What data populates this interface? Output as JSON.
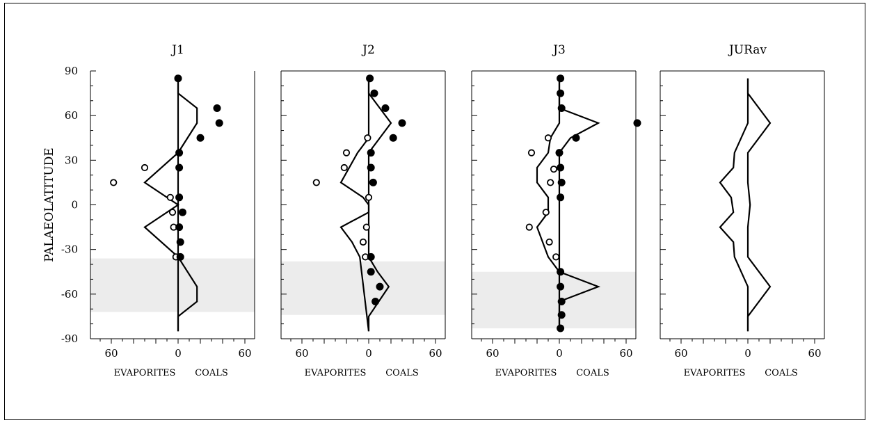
{
  "chart_data": {
    "type": "scatter",
    "ylabel": "PALAEOLATITUDE",
    "ylim": [
      -90,
      90
    ],
    "xlim": [
      -60,
      60
    ],
    "y_ticks": [
      "90",
      "60",
      "30",
      "0",
      "-30",
      "-60",
      "-90"
    ],
    "x_ticks": [
      "60",
      "0",
      "60"
    ],
    "x_left_caption": "EVAPORITES",
    "x_right_caption": "COALS",
    "panels": [
      {
        "title": "J1",
        "shade": [
          -72,
          -36
        ],
        "evaporites": [
          [
            -58,
            15
          ],
          [
            -30,
            25
          ],
          [
            -7,
            5
          ],
          [
            -5,
            -5
          ],
          [
            -4,
            -15
          ],
          [
            -2,
            -35
          ]
        ],
        "coals": [
          [
            0,
            85
          ],
          [
            35,
            65
          ],
          [
            37,
            55
          ],
          [
            20,
            45
          ],
          [
            1,
            35
          ],
          [
            1,
            25
          ],
          [
            1,
            5
          ],
          [
            4,
            -5
          ],
          [
            1,
            -15
          ],
          [
            2,
            -25
          ],
          [
            2,
            -35
          ]
        ],
        "evaporite_curve": [
          [
            0,
            85
          ],
          [
            0,
            35
          ],
          [
            -30,
            15
          ],
          [
            0,
            0
          ],
          [
            -30,
            -15
          ],
          [
            0,
            -35
          ],
          [
            0,
            -85
          ]
        ],
        "coal_curve": [
          [
            0,
            85
          ],
          [
            0,
            75
          ],
          [
            17,
            65
          ],
          [
            17,
            55
          ],
          [
            0,
            35
          ],
          [
            0,
            0
          ],
          [
            0,
            -35
          ],
          [
            17,
            -55
          ],
          [
            17,
            -65
          ],
          [
            0,
            -75
          ],
          [
            0,
            -85
          ]
        ]
      },
      {
        "title": "J2",
        "shade": [
          -74,
          -38
        ],
        "evaporites": [
          [
            -47,
            15
          ],
          [
            -20,
            35
          ],
          [
            -22,
            25
          ],
          [
            -1,
            45
          ],
          [
            0,
            5
          ],
          [
            -2,
            -15
          ],
          [
            -5,
            -25
          ],
          [
            -3,
            -35
          ]
        ],
        "coals": [
          [
            1,
            85
          ],
          [
            5,
            75
          ],
          [
            15,
            65
          ],
          [
            30,
            55
          ],
          [
            22,
            45
          ],
          [
            2,
            35
          ],
          [
            2,
            25
          ],
          [
            4,
            15
          ],
          [
            2,
            -35
          ],
          [
            2,
            -45
          ],
          [
            10,
            -55
          ],
          [
            6,
            -65
          ]
        ],
        "evaporite_curve": [
          [
            0,
            85
          ],
          [
            0,
            45
          ],
          [
            -10,
            35
          ],
          [
            -25,
            15
          ],
          [
            -5,
            5
          ],
          [
            0,
            0
          ],
          [
            0,
            -5
          ],
          [
            -25,
            -15
          ],
          [
            -15,
            -25
          ],
          [
            -8,
            -35
          ],
          [
            0,
            -85
          ]
        ],
        "coal_curve": [
          [
            0,
            85
          ],
          [
            0,
            75
          ],
          [
            10,
            65
          ],
          [
            20,
            55
          ],
          [
            0,
            35
          ],
          [
            0,
            0
          ],
          [
            0,
            -35
          ],
          [
            8,
            -45
          ],
          [
            18,
            -55
          ],
          [
            0,
            -75
          ],
          [
            0,
            -85
          ]
        ]
      },
      {
        "title": "J3",
        "shade": [
          -83,
          -45
        ],
        "evaporites": [
          [
            -25,
            35
          ],
          [
            -5,
            24
          ],
          [
            -8,
            15
          ],
          [
            -12,
            -5
          ],
          [
            -27,
            -15
          ],
          [
            -9,
            -25
          ],
          [
            -3,
            -35
          ],
          [
            -10,
            45
          ]
        ],
        "coals": [
          [
            1,
            85
          ],
          [
            1,
            75
          ],
          [
            2,
            65
          ],
          [
            70,
            55
          ],
          [
            15,
            45
          ],
          [
            0,
            35
          ],
          [
            1,
            25
          ],
          [
            2,
            15
          ],
          [
            1,
            5
          ],
          [
            1,
            -45
          ],
          [
            1,
            -55
          ],
          [
            2,
            -65
          ],
          [
            2,
            -74
          ],
          [
            1,
            -83
          ]
        ],
        "evaporite_curve": [
          [
            0,
            85
          ],
          [
            0,
            55
          ],
          [
            -8,
            45
          ],
          [
            -10,
            35
          ],
          [
            -20,
            25
          ],
          [
            -20,
            15
          ],
          [
            -10,
            5
          ],
          [
            -10,
            -5
          ],
          [
            -20,
            -15
          ],
          [
            -15,
            -25
          ],
          [
            -10,
            -35
          ],
          [
            0,
            -45
          ],
          [
            0,
            -85
          ]
        ],
        "coal_curve": [
          [
            0,
            85
          ],
          [
            0,
            65
          ],
          [
            35,
            55
          ],
          [
            10,
            45
          ],
          [
            0,
            35
          ],
          [
            0,
            0
          ],
          [
            0,
            -45
          ],
          [
            35,
            -55
          ],
          [
            0,
            -65
          ],
          [
            0,
            -85
          ]
        ]
      },
      {
        "title": "JURav",
        "shade": null,
        "evaporites": [],
        "coals": [],
        "evaporite_curve": [
          [
            0,
            85
          ],
          [
            0,
            55
          ],
          [
            -12,
            35
          ],
          [
            -13,
            25
          ],
          [
            -25,
            15
          ],
          [
            -15,
            5
          ],
          [
            -13,
            -5
          ],
          [
            -25,
            -15
          ],
          [
            -13,
            -25
          ],
          [
            -12,
            -35
          ],
          [
            0,
            -55
          ],
          [
            0,
            -85
          ]
        ],
        "coal_curve": [
          [
            0,
            85
          ],
          [
            0,
            75
          ],
          [
            20,
            55
          ],
          [
            0,
            35
          ],
          [
            0,
            15
          ],
          [
            2,
            0
          ],
          [
            0,
            -15
          ],
          [
            0,
            -35
          ],
          [
            20,
            -55
          ],
          [
            0,
            -75
          ],
          [
            0,
            -85
          ]
        ]
      }
    ]
  }
}
